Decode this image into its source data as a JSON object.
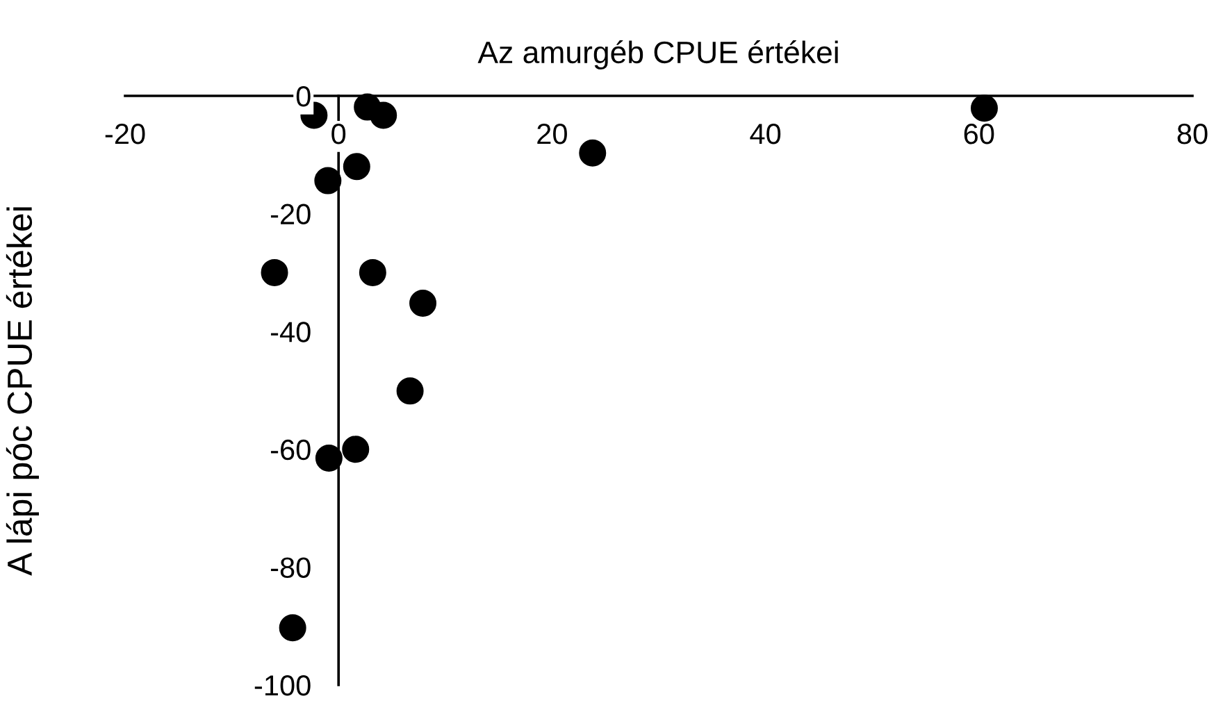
{
  "chart_data": {
    "type": "scatter",
    "xlabel": "Az amurgéb CPUE értékei",
    "ylabel": "A lápi póc CPUE értékei",
    "x": [
      -2.3,
      2.7,
      4.2,
      60.5,
      23.8,
      1.7,
      -1.0,
      -6.0,
      3.2,
      7.9,
      6.7,
      1.6,
      -0.9,
      -4.3
    ],
    "values": [
      -3.3,
      -1.9,
      -3.3,
      -2.1,
      -9.7,
      -12.0,
      -14.4,
      -30.0,
      -30.0,
      -35.2,
      -50.1,
      -60.0,
      -61.5,
      -90.3
    ],
    "color": "#000000",
    "marker": "circle",
    "xlim": [
      -20,
      80
    ],
    "ylim": [
      -100,
      0
    ],
    "xticks": [
      -20,
      0,
      20,
      40,
      60,
      80
    ],
    "yticks": [
      -100,
      -80,
      -60,
      -40,
      -20,
      0
    ]
  }
}
